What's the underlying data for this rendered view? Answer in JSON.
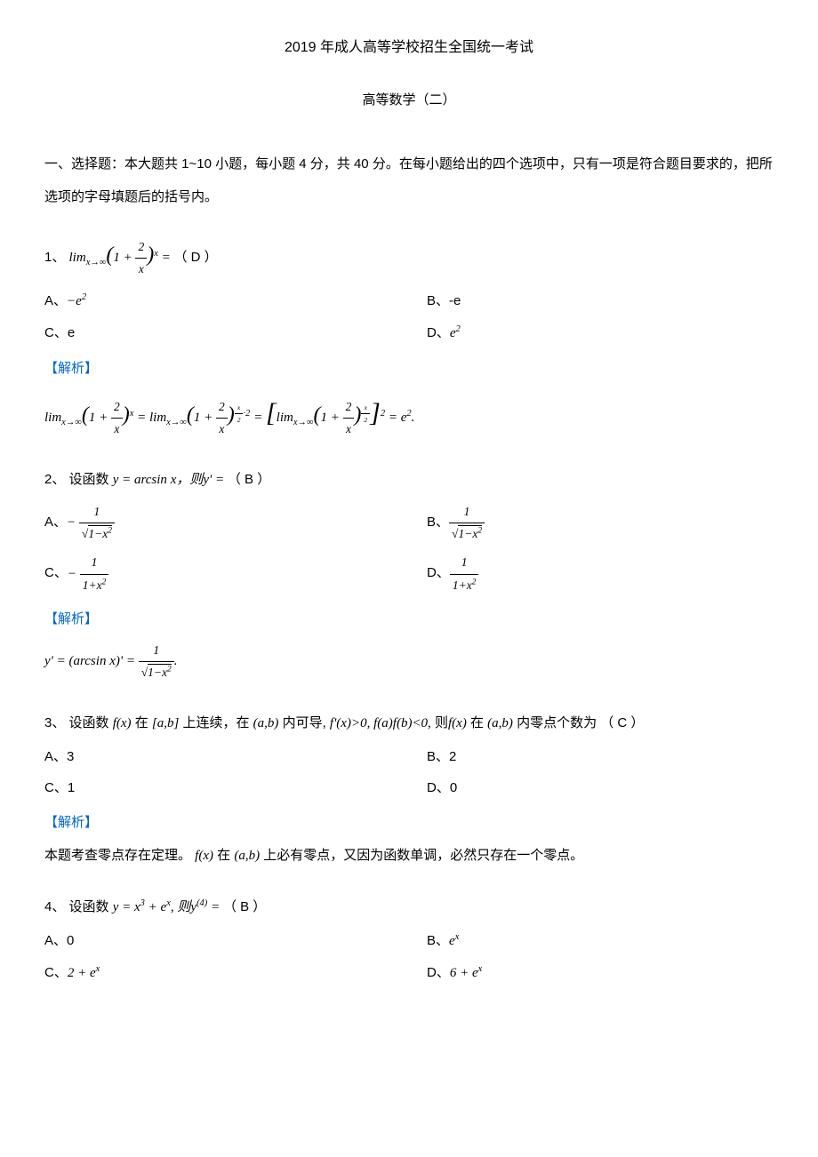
{
  "document": {
    "title": "2019 年成人高等学校招生全国统一考试",
    "subtitle": "高等数学（二）",
    "section_intro": "一、选择题：本大题共 1~10 小题，每小题 4 分，共 40 分。在每小题给出的四个选项中，只有一项是符合题目要求的，把所选项的字母填题后的括号内。",
    "analysis_label": "【解析】",
    "colors": {
      "text": "#000000",
      "background": "#ffffff",
      "analysis": "#0066cc"
    },
    "fontsize": {
      "title": 16,
      "body": 15
    }
  },
  "q1": {
    "number": "1、",
    "stem_prefix": "",
    "stem_math": "lim(x→∞)(1 + 2/x)^x =",
    "answer": "（ D ）",
    "optA_label": "A、",
    "optA_val": "−e²",
    "optB_label": "B、",
    "optB_val": "-e",
    "optC_label": "C、",
    "optC_val": "e",
    "optD_label": "D、",
    "optD_val": "e²",
    "analysis": "lim(x→∞)(1+2/x)^x = lim(x→∞)(1+2/x)^((x/2)·2) = [lim(x→∞)(1+2/x)^(x/2)]² = e²."
  },
  "q2": {
    "number": "2、",
    "stem_prefix": "设函数 ",
    "stem_math": "y = arcsin x, 则 y' =",
    "answer": "（ B ）",
    "optA_label": "A、",
    "optA_val": "− 1/√(1−x²)",
    "optB_label": "B、",
    "optB_val": "1/√(1−x²)",
    "optC_label": "C、",
    "optC_val": "− 1/(1+x²)",
    "optD_label": "D、",
    "optD_val": "1/(1+x²)",
    "analysis": "y' = (arcsin x)' = 1/√(1−x²)."
  },
  "q3": {
    "number": "3、",
    "stem": "设函数 f(x) 在 [a,b] 上连续，在 (a,b) 内可导, f'(x)>0, f(a)f(b)<0, 则 f(x) 在 (a,b) 内零点个数为",
    "answer": "（ C ）",
    "optA_label": "A、",
    "optA_val": "3",
    "optB_label": "B、",
    "optB_val": "2",
    "optC_label": "C、",
    "optC_val": "1",
    "optD_label": "D、",
    "optD_val": "0",
    "analysis": "本题考查零点存在定理。 f(x) 在 (a,b) 上必有零点，又因为函数单调，必然只存在一个零点。"
  },
  "q4": {
    "number": "4、",
    "stem_prefix": "设函数 ",
    "stem_math": "y = x³ + eˣ, 则 y⁽⁴⁾ =",
    "answer": "（ B ）",
    "optA_label": "A、",
    "optA_val": "0",
    "optB_label": "B、",
    "optB_val": "eˣ",
    "optC_label": "C、",
    "optC_val": "2 + eˣ",
    "optD_label": "D、",
    "optD_val": "6 + eˣ"
  }
}
